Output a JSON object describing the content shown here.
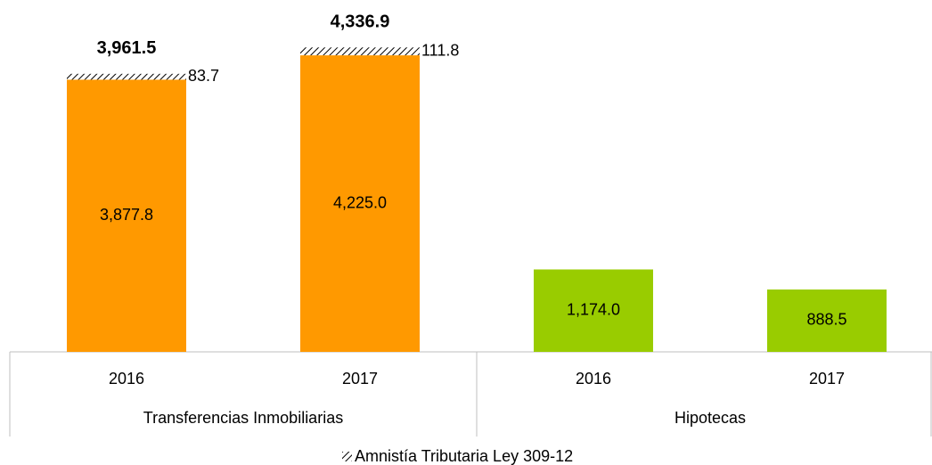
{
  "chart_data": {
    "type": "bar",
    "stacked": true,
    "groups": [
      {
        "name": "Transferencias Inmobiliarias",
        "categories": [
          "2016",
          "2017"
        ]
      },
      {
        "name": "Hipotecas",
        "categories": [
          "2016",
          "2017"
        ]
      }
    ],
    "series": [
      {
        "colors": [
          "#ff9900",
          "#ff9900",
          "#99cc00",
          "#99cc00"
        ],
        "values": [
          3877.8,
          4225.0,
          1174.0,
          888.5
        ],
        "value_labels": [
          "3,877.8",
          "4,225.0",
          "1,174.0",
          "888.5"
        ]
      },
      {
        "name": "Amnistía Tributaria Ley 309-12",
        "color": "#000000",
        "pattern": "hatch",
        "values": [
          83.7,
          111.8,
          null,
          null
        ]
      }
    ],
    "totals": {
      "values": [
        3961.5,
        4336.9,
        null,
        null
      ],
      "value_labels": [
        "3,961.5",
        "4,336.9",
        null,
        null
      ]
    },
    "ylim": [
      0,
      5000
    ],
    "legend": "bottom"
  }
}
